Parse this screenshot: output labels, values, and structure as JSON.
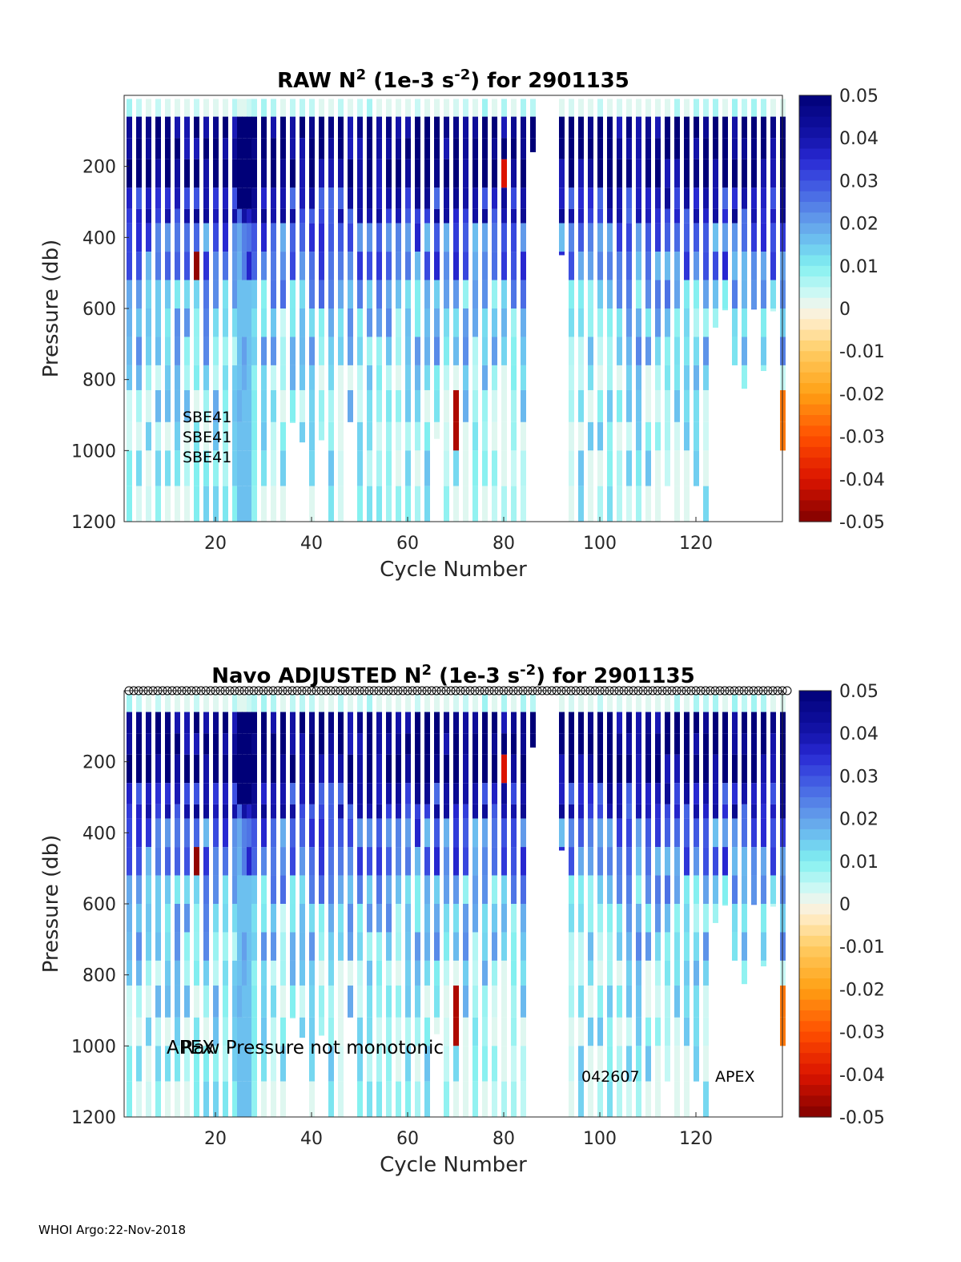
{
  "footer": "WHOI Argo:22-Nov-2018",
  "colorbar": {
    "ticks": [
      "0.05",
      "0.04",
      "0.03",
      "0.02",
      "0.01",
      "0",
      "-0.01",
      "-0.02",
      "-0.03",
      "-0.04",
      "-0.05"
    ],
    "range": [
      -0.05,
      0.05
    ]
  },
  "chart_data": [
    {
      "type": "heatmap",
      "title_main": "RAW N",
      "title_sup": "2",
      "title_units_open": " (1e-3 s",
      "title_units_sup": "-2",
      "title_tail": ") for 2901135",
      "xlabel": "Cycle Number",
      "ylabel": "Pressure (db)",
      "xlim": [
        1,
        138
      ],
      "ylim": [
        1200,
        0
      ],
      "xticks": [
        "20",
        "40",
        "60",
        "80",
        "100",
        "120"
      ],
      "yticks": [
        "200",
        "400",
        "600",
        "800",
        "1000",
        "1200"
      ],
      "annotations": [
        "SBE41",
        "SBE41",
        "SBE41"
      ],
      "colormap_range": [
        -0.05,
        0.05
      ],
      "description": "N2 profiles per cycle: high stability (~0.05) near surface decreasing to ~0.005 at depth; few negative values near cycles 16, 70, 80, 138"
    },
    {
      "type": "heatmap",
      "title_main": "Navo  ADJUSTED N",
      "title_sup": "2",
      "title_units_open": " (1e-3 s",
      "title_units_sup": "-2",
      "title_tail": ") for 2901135",
      "xlabel": "Cycle Number",
      "ylabel": "Pressure (db)",
      "xlim": [
        1,
        138
      ],
      "ylim": [
        1200,
        0
      ],
      "xticks": [
        "20",
        "40",
        "60",
        "80",
        "100",
        "120"
      ],
      "yticks": [
        "200",
        "400",
        "600",
        "800",
        "1000",
        "1200"
      ],
      "annotation_overlap_a": "APEX",
      "annotation_overlap_b": "Raw Pressure not monotonic",
      "annotation_serial": "042607",
      "annotation_type": "APEX",
      "marker_symbol": "o",
      "colormap_range": [
        -0.05,
        0.05
      ]
    }
  ]
}
